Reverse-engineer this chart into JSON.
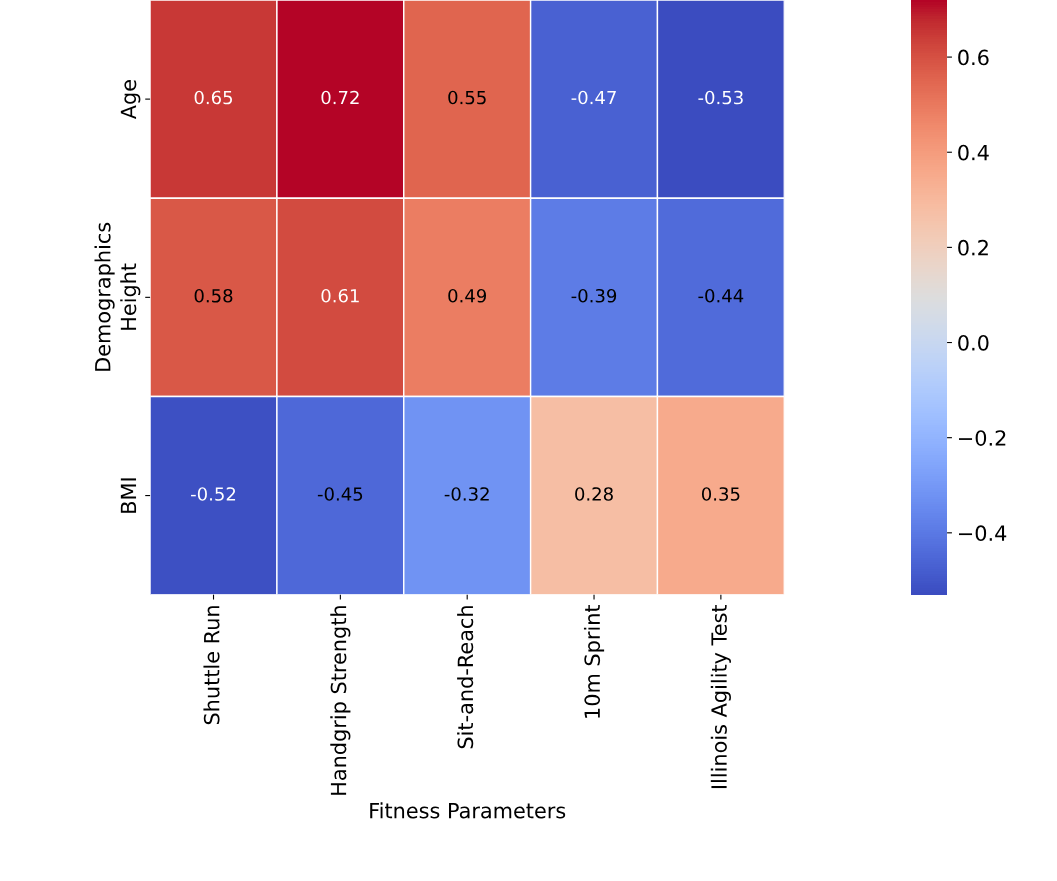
{
  "chart_data": {
    "type": "heatmap",
    "xlabel": "Fitness Parameters",
    "ylabel": "Demographics",
    "categories": [
      "Shuttle Run",
      "Handgrip Strength",
      "Sit-and-Reach",
      "10m Sprint",
      "Illinois Agility Test"
    ],
    "y_categories": [
      "Age",
      "Height",
      "BMI"
    ],
    "cells": [
      [
        0.65,
        0.72,
        0.55,
        -0.47,
        -0.53
      ],
      [
        0.58,
        0.61,
        0.49,
        -0.39,
        -0.44
      ],
      [
        -0.52,
        -0.45,
        -0.32,
        0.28,
        0.35
      ]
    ],
    "data_labels": true,
    "clim": [
      -0.53,
      0.72
    ],
    "cticks": [
      {
        "value": -0.4,
        "label": "−0.4"
      },
      {
        "value": -0.2,
        "label": "−0.2"
      },
      {
        "value": 0.0,
        "label": "0.0"
      },
      {
        "value": 0.2,
        "label": "0.2"
      },
      {
        "value": 0.4,
        "label": "0.4"
      },
      {
        "value": 0.6,
        "label": "0.6"
      }
    ]
  }
}
